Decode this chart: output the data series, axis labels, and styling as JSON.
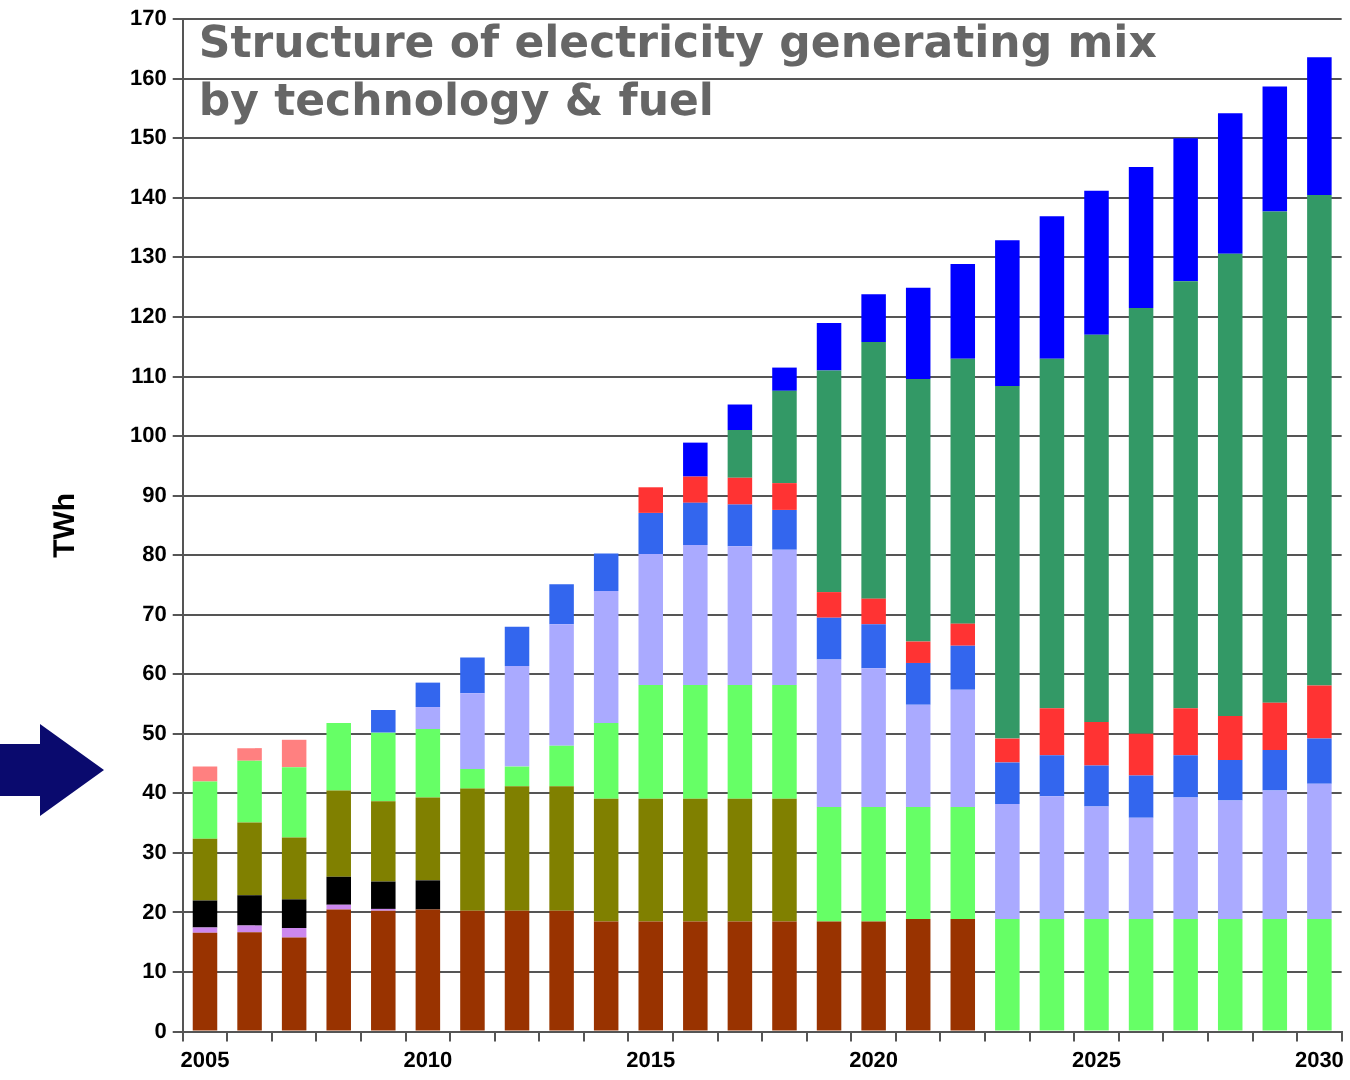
{
  "chart_data": {
    "type": "bar",
    "stacked": true,
    "title": "Structure of electricity generating mix\nby technology & fuel",
    "ylabel": "TWh",
    "categories": [
      "2005",
      null,
      null,
      null,
      null,
      "2010",
      null,
      null,
      null,
      null,
      "2015",
      null,
      null,
      null,
      null,
      "2020",
      null,
      null,
      null,
      null,
      "2025",
      null,
      null,
      null,
      null,
      "2030"
    ],
    "series": [
      {
        "color": "#993300",
        "values": [
          16.6,
          16.7,
          15.8,
          20.5,
          20.3,
          20.5,
          20.3,
          20.3,
          20.3,
          18.5,
          18.5,
          18.5,
          18.5,
          18.5,
          18.5,
          18.5,
          18.9,
          18.9,
          null,
          null,
          null,
          null,
          null,
          null,
          null,
          null
        ]
      },
      {
        "color": "#cc88ee",
        "values": [
          0.9,
          1.1,
          1.6,
          0.8,
          0.3,
          null,
          null,
          null,
          null,
          null,
          null,
          null,
          null,
          null,
          null,
          null,
          null,
          null,
          null,
          null,
          null,
          null,
          null,
          null,
          null,
          null
        ]
      },
      {
        "color": "#000000",
        "values": [
          4.5,
          5.1,
          4.8,
          4.7,
          4.6,
          4.9,
          null,
          null,
          null,
          null,
          null,
          null,
          null,
          null,
          null,
          null,
          null,
          null,
          null,
          null,
          null,
          null,
          null,
          null,
          null,
          null
        ]
      },
      {
        "color": "#808000",
        "values": [
          10.4,
          12.2,
          10.4,
          14.5,
          13.5,
          13.9,
          20.5,
          20.9,
          20.9,
          20.6,
          20.6,
          20.6,
          20.6,
          20.6,
          null,
          null,
          null,
          null,
          null,
          null,
          null,
          null,
          null,
          null,
          null,
          null
        ]
      },
      {
        "color": "#66ff66",
        "values": [
          9.6,
          10.4,
          11.8,
          11.3,
          11.5,
          11.5,
          3.3,
          3.3,
          6.8,
          12.7,
          19.1,
          19.1,
          19.1,
          19.1,
          19.2,
          19.2,
          18.8,
          18.8,
          18.9,
          18.9,
          18.9,
          18.9,
          18.9,
          18.9,
          18.9,
          18.9
        ]
      },
      {
        "color": "#aaaaff",
        "values": [
          null,
          null,
          null,
          null,
          null,
          3.7,
          12.7,
          16.9,
          20.4,
          22.2,
          22,
          23.5,
          23.3,
          22.7,
          24.8,
          23.3,
          17.2,
          19.7,
          19.3,
          20.6,
          18.9,
          17,
          20.4,
          19.9,
          21.6,
          22.7
        ]
      },
      {
        "color": "#3366ee",
        "values": [
          null,
          null,
          null,
          null,
          3.8,
          4.1,
          6,
          6.6,
          6.7,
          6.3,
          6.9,
          7.1,
          7,
          6.7,
          7,
          7.4,
          7,
          7.4,
          7,
          6.9,
          6.9,
          7.1,
          7.1,
          6.8,
          6.8,
          7.6
        ]
      },
      {
        "color": "#ff3333",
        "values": [
          null,
          null,
          null,
          null,
          null,
          null,
          null,
          null,
          null,
          null,
          4.3,
          4.4,
          4.5,
          4.5,
          4.3,
          4.3,
          3.6,
          3.7,
          4,
          7.9,
          7.3,
          7,
          7.9,
          7.4,
          7.9,
          8.9
        ]
      },
      {
        "color": "#ff8080",
        "values": [
          2.5,
          2.1,
          4.6,
          null,
          null,
          null,
          null,
          null,
          null,
          null,
          null,
          null,
          null,
          null,
          null,
          null,
          null,
          null,
          null,
          null,
          null,
          null,
          null,
          null,
          null,
          null
        ]
      },
      {
        "color": "#339966",
        "values": [
          null,
          null,
          null,
          null,
          null,
          null,
          null,
          null,
          null,
          null,
          null,
          null,
          8,
          15.5,
          37.2,
          43.1,
          44.1,
          44.5,
          59.2,
          58.7,
          65,
          71.5,
          71.7,
          77.6,
          82.5,
          82.4
        ]
      },
      {
        "color": "#0000ff",
        "values": [
          null,
          null,
          null,
          null,
          null,
          null,
          null,
          null,
          null,
          null,
          null,
          5.7,
          4.3,
          3.9,
          8,
          8,
          15.3,
          15.9,
          24.5,
          23.9,
          24.2,
          23.7,
          24,
          23.6,
          21,
          23.1
        ]
      }
    ],
    "ylim": [
      0,
      170
    ],
    "yticks": [
      0,
      10,
      20,
      30,
      40,
      50,
      60,
      70,
      80,
      90,
      100,
      110,
      120,
      130,
      140,
      150,
      160,
      170
    ],
    "grid": "y",
    "legend": false
  }
}
